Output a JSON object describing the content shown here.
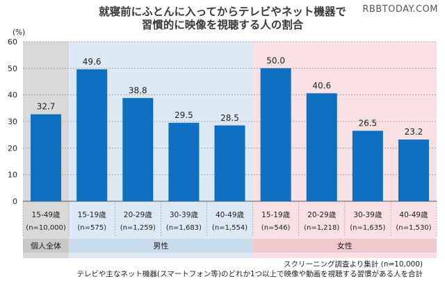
{
  "watermark": "RBBTODAY.COM",
  "chart_data": {
    "type": "bar",
    "title_lines": [
      "就寝前にふとんに入ってからテレビやネット機器で",
      "習慣的に映像を視聴する人の割合"
    ],
    "ylabel": "(%)",
    "ylim": [
      0,
      60
    ],
    "yticks": [
      0,
      10,
      20,
      30,
      40,
      50,
      60
    ],
    "grid": true,
    "categories": [
      "15-49歳",
      "15-19歳",
      "20-29歳",
      "30-39歳",
      "40-49歳",
      "15-19歳",
      "20-29歳",
      "30-39歳",
      "40-49歳"
    ],
    "samples": [
      "(n=10,000)",
      "(n=575)",
      "(n=1,259)",
      "(n=1,683)",
      "(n=1,554)",
      "(n=546)",
      "(n=1,218)",
      "(n=1,635)",
      "(n=1,530)"
    ],
    "values": [
      32.7,
      49.6,
      38.8,
      29.5,
      28.5,
      50.0,
      40.6,
      26.5,
      23.2
    ],
    "value_labels": [
      "32.7",
      "49.6",
      "38.8",
      "29.5",
      "28.5",
      "50.0",
      "40.6",
      "26.5",
      "23.2"
    ],
    "groups": [
      {
        "label": "個人全体",
        "start": 0,
        "end": 0,
        "color": "#d9d9d9",
        "labelColor": "#c8c8c8"
      },
      {
        "label": "男性",
        "start": 1,
        "end": 4,
        "color": "#dce8f4",
        "labelColor": "#c9dcee"
      },
      {
        "label": "女性",
        "start": 5,
        "end": 8,
        "color": "#f8e0e3",
        "labelColor": "#f0c9cf"
      }
    ],
    "bar_color": "#0e6fc1",
    "notes": [
      "スクリーニング調査より集計 (n=10,000)",
      "テレビや主なネット機器(スマートフォン等)のどれか1つ以上で映像や動画を視聴する習慣がある人を合計"
    ]
  }
}
